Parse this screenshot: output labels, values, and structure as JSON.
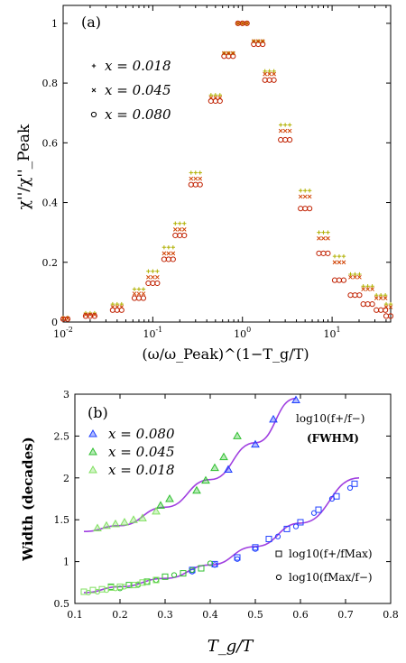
{
  "chart_data": [
    {
      "panel": "(a)",
      "type": "scatter",
      "xscale": "log",
      "xlim": [
        0.01,
        45
      ],
      "ylim": [
        0,
        1.06
      ],
      "xticks": [
        0.01,
        0.1,
        1,
        10
      ],
      "xtick_labels": [
        [
          "10",
          "-2"
        ],
        [
          "10",
          "-1"
        ],
        [
          "10",
          "0"
        ],
        [
          "10",
          "1"
        ]
      ],
      "yticks": [
        0,
        0.2,
        0.4,
        0.6,
        0.8,
        1
      ],
      "ytick_labels": [
        "0",
        "0.2",
        "0.4",
        "0.6",
        "0.8",
        "1"
      ],
      "xlabel": "(ω/ω_Peak)^(1−T_g/T)",
      "ylabel": "χ''/χ''_Peak",
      "legend": [
        "x = 0.018",
        "x = 0.045",
        "x = 0.080"
      ],
      "legend_placement": "left",
      "series": [
        {
          "name": "x = 0.018",
          "marker": "plus",
          "color": "#b0b000",
          "x": [
            0.01,
            0.02,
            0.04,
            0.07,
            0.1,
            0.15,
            0.2,
            0.3,
            0.5,
            0.7,
            1.0,
            1.5,
            2,
            3,
            5,
            8,
            12,
            18,
            25,
            35,
            45
          ],
          "y": [
            0.015,
            0.03,
            0.06,
            0.11,
            0.17,
            0.25,
            0.33,
            0.5,
            0.76,
            0.9,
            1.0,
            0.94,
            0.84,
            0.66,
            0.44,
            0.3,
            0.22,
            0.16,
            0.12,
            0.09,
            0.06
          ]
        },
        {
          "name": "x = 0.045",
          "marker": "cross",
          "color": "#d04000",
          "x": [
            0.01,
            0.02,
            0.04,
            0.07,
            0.1,
            0.15,
            0.2,
            0.3,
            0.5,
            0.7,
            1.0,
            1.5,
            2,
            3,
            5,
            8,
            12,
            18,
            25,
            35,
            45
          ],
          "y": [
            0.012,
            0.025,
            0.05,
            0.095,
            0.15,
            0.23,
            0.31,
            0.48,
            0.75,
            0.9,
            1.0,
            0.94,
            0.83,
            0.64,
            0.42,
            0.28,
            0.2,
            0.15,
            0.11,
            0.08,
            0.05
          ]
        },
        {
          "name": "x = 0.080",
          "marker": "circle",
          "color": "#c02000",
          "x": [
            0.01,
            0.02,
            0.04,
            0.07,
            0.1,
            0.15,
            0.2,
            0.3,
            0.5,
            0.7,
            1.0,
            1.5,
            2,
            3,
            5,
            8,
            12,
            18,
            25,
            35,
            45
          ],
          "y": [
            0.01,
            0.02,
            0.04,
            0.08,
            0.13,
            0.21,
            0.29,
            0.46,
            0.74,
            0.89,
            1.0,
            0.93,
            0.81,
            0.61,
            0.38,
            0.23,
            0.14,
            0.09,
            0.06,
            0.04,
            0.02
          ]
        }
      ]
    },
    {
      "panel": "(b)",
      "type": "scatter",
      "xlim": [
        0.1,
        0.8
      ],
      "ylim": [
        0.5,
        3
      ],
      "xticks": [
        0.1,
        0.2,
        0.3,
        0.4,
        0.5,
        0.6,
        0.7,
        0.8
      ],
      "xtick_labels": [
        "0.1",
        "0.2",
        "0.3",
        "0.4",
        "0.5",
        "0.6",
        "0.7",
        "0.8"
      ],
      "yticks": [
        0.5,
        1,
        1.5,
        2,
        2.5,
        3
      ],
      "ytick_labels": [
        "0.5",
        "1",
        "1.5",
        "2",
        "2.5",
        "3"
      ],
      "xlabel": "T_g/T",
      "ylabel": "Width (decades)",
      "legend": [
        "x = 0.080",
        "x = 0.045",
        "x = 0.018"
      ],
      "legend_placement": "top-left",
      "annotations": {
        "fwhm_label": "log10(f+/f−)",
        "fwhm_sub": "(FWHM)",
        "square_label": "log10(f+/fMax)",
        "circle_label": "log10(fMax/f−)"
      },
      "fit_curves": [
        {
          "x": [
            0.12,
            0.2,
            0.3,
            0.4,
            0.5,
            0.59
          ],
          "y": [
            1.36,
            1.43,
            1.65,
            1.98,
            2.42,
            2.95
          ]
        },
        {
          "x": [
            0.12,
            0.2,
            0.3,
            0.4,
            0.5,
            0.6,
            0.73
          ],
          "y": [
            0.63,
            0.7,
            0.8,
            0.96,
            1.18,
            1.46,
            2.0
          ]
        }
      ],
      "series": [
        {
          "name": "x = 0.080",
          "color": "#2040ff",
          "marker": "triangle",
          "x": [
            0.44,
            0.5,
            0.54,
            0.59
          ],
          "y": [
            2.1,
            2.4,
            2.7,
            2.93
          ]
        },
        {
          "name": "x = 0.045",
          "color": "#30c030",
          "marker": "triangle",
          "x": [
            0.29,
            0.31,
            0.37,
            0.39,
            0.41,
            0.43,
            0.46
          ],
          "y": [
            1.67,
            1.75,
            1.85,
            1.97,
            2.12,
            2.25,
            2.5
          ]
        },
        {
          "name": "x = 0.018",
          "color": "#80e060",
          "marker": "triangle",
          "x": [
            0.15,
            0.17,
            0.19,
            0.21,
            0.23,
            0.25,
            0.28
          ],
          "y": [
            1.4,
            1.43,
            1.45,
            1.47,
            1.5,
            1.52,
            1.6
          ]
        },
        {
          "name": "x = 0.080 (f+/fMax)",
          "color": "#2040ff",
          "marker": "square",
          "x": [
            0.36,
            0.41,
            0.46,
            0.5,
            0.53,
            0.57,
            0.6,
            0.64,
            0.68,
            0.72
          ],
          "y": [
            0.9,
            0.97,
            1.05,
            1.17,
            1.27,
            1.39,
            1.47,
            1.62,
            1.78,
            1.93
          ]
        },
        {
          "name": "x = 0.080 (fMax/f−)",
          "color": "#2040ff",
          "marker": "circle",
          "x": [
            0.36,
            0.41,
            0.46,
            0.5,
            0.55,
            0.59,
            0.63,
            0.67,
            0.71
          ],
          "y": [
            0.88,
            0.96,
            1.03,
            1.15,
            1.3,
            1.42,
            1.58,
            1.75,
            1.88
          ]
        },
        {
          "name": "x = 0.045 (f+/fMax)",
          "color": "#30c030",
          "marker": "square",
          "x": [
            0.18,
            0.22,
            0.26,
            0.3,
            0.34,
            0.38
          ],
          "y": [
            0.7,
            0.72,
            0.76,
            0.82,
            0.86,
            0.92
          ]
        },
        {
          "name": "x = 0.045 (fMax/f−)",
          "color": "#30c030",
          "marker": "circle",
          "x": [
            0.2,
            0.24,
            0.28,
            0.32,
            0.36,
            0.4
          ],
          "y": [
            0.68,
            0.72,
            0.78,
            0.84,
            0.9,
            0.98
          ]
        },
        {
          "name": "x = 0.018 (f+/fMax)",
          "color": "#80e060",
          "marker": "square",
          "x": [
            0.12,
            0.14,
            0.16,
            0.18,
            0.2,
            0.23,
            0.25,
            0.28
          ],
          "y": [
            0.64,
            0.66,
            0.67,
            0.69,
            0.7,
            0.72,
            0.75,
            0.78
          ]
        },
        {
          "name": "x = 0.018 (fMax/f−)",
          "color": "#80e060",
          "marker": "circle",
          "x": [
            0.13,
            0.15,
            0.17,
            0.19,
            0.21,
            0.24,
            0.26
          ],
          "y": [
            0.63,
            0.64,
            0.66,
            0.68,
            0.7,
            0.73,
            0.76
          ]
        }
      ]
    }
  ]
}
